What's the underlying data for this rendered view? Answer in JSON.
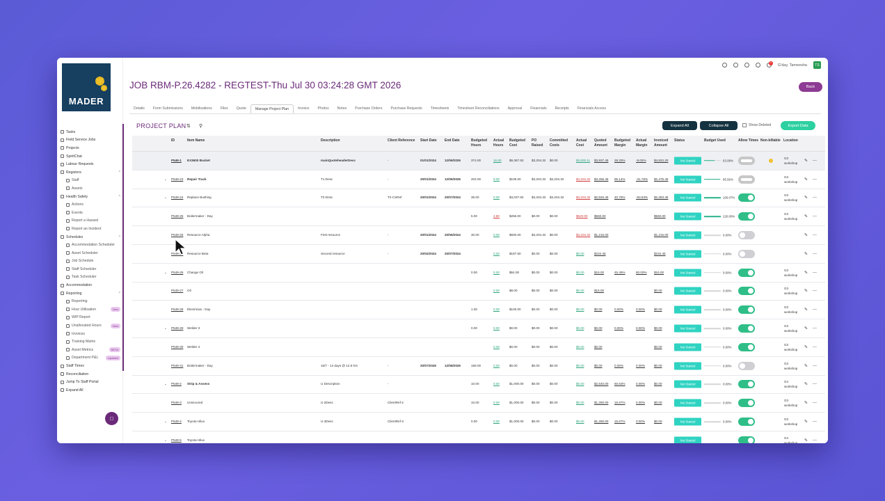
{
  "sidebar": {
    "logo": "MADER",
    "items": [
      {
        "label": "Tasks",
        "type": "item"
      },
      {
        "label": "Field Service Jobs",
        "type": "item"
      },
      {
        "label": "Projects",
        "type": "item"
      },
      {
        "label": "SpiritChat",
        "type": "item"
      },
      {
        "label": "Labour Requests",
        "type": "item"
      },
      {
        "label": "Registers",
        "type": "hdr"
      },
      {
        "label": "Staff",
        "type": "sub"
      },
      {
        "label": "Assets",
        "type": "sub"
      },
      {
        "label": "Health Safety",
        "type": "hdr"
      },
      {
        "label": "Actions",
        "type": "sub"
      },
      {
        "label": "Events",
        "type": "sub"
      },
      {
        "label": "Report a Hazard",
        "type": "sub"
      },
      {
        "label": "Report an Incident",
        "type": "sub"
      },
      {
        "label": "Schedules",
        "type": "hdr"
      },
      {
        "label": "Accommodation Scheduler",
        "type": "sub"
      },
      {
        "label": "Asset Scheduler",
        "type": "sub"
      },
      {
        "label": "Job Schedule",
        "type": "sub"
      },
      {
        "label": "Staff Scheduler",
        "type": "sub"
      },
      {
        "label": "Task Scheduler",
        "type": "sub"
      },
      {
        "label": "Accommodation",
        "type": "item"
      },
      {
        "label": "Reporting",
        "type": "hdr"
      },
      {
        "label": "Reporting",
        "type": "sub"
      },
      {
        "label": "Hour Utilisation",
        "type": "sub",
        "badge": "New"
      },
      {
        "label": "WIP Report",
        "type": "sub"
      },
      {
        "label": "Unallocated Hours",
        "type": "sub",
        "badge": "New"
      },
      {
        "label": "Invoices",
        "type": "sub"
      },
      {
        "label": "Training Matrix",
        "type": "sub"
      },
      {
        "label": "Asset Metrics",
        "type": "sub",
        "badge": "BETA"
      },
      {
        "label": "Department P&L",
        "type": "sub",
        "badge": "Updated"
      },
      {
        "label": "Staff Times",
        "type": "item"
      },
      {
        "label": "Reconciliation",
        "type": "item"
      },
      {
        "label": "Jump To Staff Portal",
        "type": "item"
      },
      {
        "label": "Expand All",
        "type": "item"
      }
    ]
  },
  "topbar": {
    "greeting": "G'day, Tameesha",
    "avatar": "TS",
    "notifications": "3"
  },
  "job_title": "JOB RBM-P.26.4282 - REGTEST-Thu Jul 30 03:24:28 GMT 2026",
  "back_label": "Back",
  "tabs": [
    "Details",
    "Form Submissions",
    "Mobilisations",
    "Files",
    "Quote",
    "Manage Project Plan",
    "Invoice",
    "Photos",
    "Notes",
    "Purchase Orders",
    "Purchase Requests",
    "Timesheets",
    "Timesheet Reconciliations",
    "Approval",
    "Financials",
    "Receipts",
    "Financials Access"
  ],
  "active_tab": "Manage Project Plan",
  "plan_title": "PROJECT PLAN",
  "expand_all": "Expand All",
  "collapse_all": "Collapse All",
  "show_deleted": "Show Deleted",
  "export_label": "Export Data",
  "columns": [
    "ID",
    "Item Name",
    "Description",
    "Client Reference",
    "Start Date",
    "End Date",
    "Budgeted Hours",
    "Actual Hours",
    "Budgeted Cost",
    "PO Raised",
    "Committed Costs",
    "Actual Cost",
    "Quoted Amount",
    "Budgeted Margin",
    "Actual Margin",
    "Invoiced Amount",
    "Status",
    "Budget Used",
    "Allow Times",
    "Non-billable",
    "Location"
  ],
  "rows": [
    {
      "id": "P549-1",
      "name": "EX3600 Bucket",
      "desc": "mainQuoteheaderDesc",
      "ref": "-",
      "start": "01/01/2024",
      "end": "12/06/2026",
      "bh": "374.00",
      "ah": "16.80",
      "bc": "$9,367.53",
      "po": "$3,204.32",
      "cc": "$0.00",
      "ac": "$3,600.11",
      "qa": "$3,937.45",
      "bm": "28.33%",
      "am": "-9.02%",
      "ia": "$4,822.20",
      "status": "Not Started",
      "bu": "63.08%",
      "bufill": 0.63,
      "toggle": "dis",
      "nb": true,
      "loc": "G3 workshop",
      "exp": false,
      "lvl": 0,
      "bold": true
    },
    {
      "id": "P549-23",
      "name": "Repair Track",
      "desc": "T1-Desc",
      "ref": "-",
      "start": "20/01/2024",
      "end": "12/06/2026",
      "bh": "204.00",
      "ah": "8.00",
      "bc": "$106.00",
      "po": "$3,204.32",
      "cc": "$3,204.32",
      "ac": "$4,204.32",
      "qa": "$3,256.45",
      "bm": "95.14%",
      "am": "-31.76%",
      "ia": "$2,475.45",
      "status": "Not Started",
      "bu": "95.56%",
      "bufill": 0.95,
      "toggle": "dis",
      "nb": false,
      "loc": "G3 workshop",
      "exp": true,
      "lvl": 1,
      "bold": true
    },
    {
      "id": "P549-24",
      "name": "Replace Bushing",
      "desc": "T2-Desc",
      "ref": "T2-CSRef",
      "start": "20/01/2024",
      "end": "20/07/2024",
      "bh": "35.00",
      "ah": "0.00",
      "bc": "$3,037.50",
      "po": "$3,204.32",
      "cc": "$3,204.32",
      "ac": "$4,204.32",
      "qa": "$2,845.45",
      "bm": "40.78%",
      "am": "-93.63%",
      "ia": "$2,383.45",
      "status": "Not Started",
      "bu": "106.07%",
      "bufill": 1,
      "toggle": "on",
      "nb": false,
      "loc": "G3 workshop",
      "exp": true,
      "lvl": 2,
      "bold": false
    },
    {
      "id": "P549-25",
      "name": "Boilermaker - Day",
      "desc": "",
      "ref": "",
      "start": "",
      "end": "",
      "bh": "5.00",
      "ah": "4.80",
      "bc": "$256.00",
      "po": "$0.00",
      "cc": "$0.00",
      "ac": "$620.00",
      "qa": "$560.00",
      "bm": "",
      "am": "",
      "ia": "$560.00",
      "status": "Not Started",
      "bu": "220.00%",
      "bufill": 1,
      "toggle": "on",
      "nb": false,
      "loc": "G3 workshop",
      "exp": false,
      "lvl": 3,
      "bold": false
    },
    {
      "id": "P549-26",
      "name": "Resource Alpha",
      "desc": "First resource",
      "ref": "-",
      "start": "20/01/2024",
      "end": "20/06/2024",
      "bh": "30.00",
      "ah": "0.00",
      "bc": "$600.00",
      "po": "$3,204.32",
      "cc": "$0.00",
      "ac": "$3,204.32",
      "qa": "$1,215.00",
      "bm": "",
      "am": "",
      "ia": "$1,215.00",
      "status": "Not Started",
      "bu": "0.00%",
      "bufill": 0,
      "toggle": "off",
      "nb": false,
      "loc": "",
      "exp": false,
      "lvl": 3,
      "bold": false
    },
    {
      "id": "P549-27",
      "name": "Resource Beta",
      "desc": "Second resource",
      "ref": "-",
      "start": "20/02/2024",
      "end": "20/07/2024",
      "bh": "",
      "ah": "0.00",
      "bc": "$187.50",
      "po": "$0.00",
      "cc": "$0.00",
      "ac": "$0.00",
      "qa": "$234.45",
      "bm": "",
      "am": "",
      "ia": "$234.45",
      "status": "Not Started",
      "bu": "0.00%",
      "bufill": 0,
      "toggle": "off",
      "nb": false,
      "loc": "",
      "exp": false,
      "lvl": 3,
      "bold": false
    },
    {
      "id": "P549-26",
      "name": "Change Oil",
      "desc": "",
      "ref": "",
      "start": "",
      "end": "",
      "bh": "0.00",
      "ah": "0.00",
      "bc": "$64.00",
      "po": "$0.00",
      "cc": "$0.00",
      "ac": "$0.00",
      "qa": "$16.00",
      "bm": "45.45%",
      "am": "80.00%",
      "ia": "$16.00",
      "status": "Not Started",
      "bu": "0.00%",
      "bufill": 0,
      "toggle": "on",
      "nb": false,
      "loc": "G3 workshop",
      "exp": true,
      "lvl": 2,
      "bold": false
    },
    {
      "id": "P549-27",
      "name": "Oil",
      "desc": "",
      "ref": "",
      "start": "",
      "end": "",
      "bh": "",
      "ah": "0.00",
      "bc": "$8.00",
      "po": "$0.00",
      "cc": "$0.00",
      "ac": "$0.00",
      "qa": "$16.00",
      "bm": "",
      "am": "",
      "ia": "$0.00",
      "status": "Not Started",
      "bu": "0.00%",
      "bufill": 0,
      "toggle": "on",
      "nb": false,
      "loc": "G3 workshop",
      "exp": false,
      "lvl": 3,
      "bold": false
    },
    {
      "id": "P549-28",
      "name": "Electrician - Day",
      "desc": "",
      "ref": "",
      "start": "",
      "end": "",
      "bh": "1.00",
      "ah": "0.00",
      "bc": "$100.00",
      "po": "$0.00",
      "cc": "$0.00",
      "ac": "$0.00",
      "qa": "$0.00",
      "bm": "0.00%",
      "am": "0.00%",
      "ia": "$0.00",
      "status": "Not Started",
      "bu": "0.00%",
      "bufill": 0,
      "toggle": "on",
      "nb": false,
      "loc": "G3 workshop",
      "exp": false,
      "lvl": 3,
      "bold": false
    },
    {
      "id": "P549-29",
      "name": "Welder 3",
      "desc": "",
      "ref": "",
      "start": "",
      "end": "",
      "bh": "0.00",
      "ah": "0.00",
      "bc": "$0.00",
      "po": "$0.00",
      "cc": "$0.00",
      "ac": "$0.00",
      "qa": "$0.00",
      "bm": "0.00%",
      "am": "0.00%",
      "ia": "$0.00",
      "status": "Not Started",
      "bu": "0.00%",
      "bufill": 0,
      "toggle": "on",
      "nb": false,
      "loc": "G3 workshop",
      "exp": true,
      "lvl": 2,
      "bold": false
    },
    {
      "id": "P549-30",
      "name": "Welder 4",
      "desc": "",
      "ref": "",
      "start": "",
      "end": "",
      "bh": "",
      "ah": "0.00",
      "bc": "$0.00",
      "po": "$0.00",
      "cc": "$0.00",
      "ac": "$0.00",
      "qa": "$0.00",
      "bm": "",
      "am": "",
      "ia": "$0.00",
      "status": "Not Started",
      "bu": "0.00%",
      "bufill": 0,
      "toggle": "on",
      "nb": false,
      "loc": "G3 workshop",
      "exp": false,
      "lvl": 3,
      "bold": false
    },
    {
      "id": "P549-31",
      "name": "Boilermaker - Day",
      "desc": "16/7 - 14 days @ 12.5 hrs",
      "ref": "-",
      "start": "20/07/2026",
      "end": "12/08/2026",
      "bh": "168.00",
      "ah": "0.00",
      "bc": "$0.00",
      "po": "$0.00",
      "cc": "$0.00",
      "ac": "$0.00",
      "qa": "$0.00",
      "bm": "0.00%",
      "am": "0.00%",
      "ia": "$0.00",
      "status": "Not Started",
      "bu": "0.00%",
      "bufill": 0,
      "toggle": "off",
      "nb": false,
      "loc": "G3 workshop",
      "exp": false,
      "lvl": 2,
      "bold": false
    },
    {
      "id": "P549-2",
      "name": "Strip & Assess",
      "desc": "U Description",
      "ref": "-",
      "start": "",
      "end": "",
      "bh": "10.00",
      "ah": "0.00",
      "bc": "$1,000.00",
      "po": "$0.00",
      "cc": "$0.00",
      "ac": "$0.00",
      "qa": "$2,540.00",
      "bm": "60.63%",
      "am": "0.00%",
      "ia": "$0.00",
      "status": "Not Started",
      "bu": "0.00%",
      "bufill": 0,
      "toggle": "on",
      "nb": false,
      "loc": "G4 workshop",
      "exp": true,
      "lvl": 1,
      "bold": true
    },
    {
      "id": "P549-3",
      "name": "Unsecured",
      "desc": "U-2Desc",
      "ref": "ClientRef-2",
      "start": "",
      "end": "",
      "bh": "10.00",
      "ah": "0.00",
      "bc": "$1,000.00",
      "po": "$0.00",
      "cc": "$0.00",
      "ac": "$0.00",
      "qa": "$1,280.00",
      "bm": "15.67%",
      "am": "0.00%",
      "ia": "$0.00",
      "status": "Not Started",
      "bu": "0.00%",
      "bufill": 0,
      "toggle": "on",
      "nb": false,
      "loc": "G3 workshop",
      "exp": false,
      "lvl": 2,
      "bold": false
    },
    {
      "id": "P549-4",
      "name": "Toyota Hilux",
      "desc": "U-3Desc",
      "ref": "ClientRef-3",
      "start": "",
      "end": "",
      "bh": "0.00",
      "ah": "0.00",
      "bc": "$1,000.00",
      "po": "$0.00",
      "cc": "$0.00",
      "ac": "$0.00",
      "qa": "$1,280.00",
      "bm": "15.67%",
      "am": "0.00%",
      "ia": "$0.00",
      "status": "Not Started",
      "bu": "0.00%",
      "bufill": 0,
      "toggle": "on",
      "nb": false,
      "loc": "G3 workshop",
      "exp": true,
      "lvl": 1,
      "bold": false
    },
    {
      "id": "P549-5",
      "name": "Toyota Hilux",
      "desc": "",
      "ref": "",
      "start": "",
      "end": "",
      "bh": "",
      "ah": "",
      "bc": "",
      "po": "",
      "cc": "",
      "ac": "",
      "qa": "",
      "bm": "",
      "am": "",
      "ia": "",
      "status": "Not Started",
      "bu": "",
      "bufill": 0,
      "toggle": "on",
      "nb": false,
      "loc": "G4 workshop",
      "exp": true,
      "lvl": 2,
      "bold": false
    }
  ]
}
